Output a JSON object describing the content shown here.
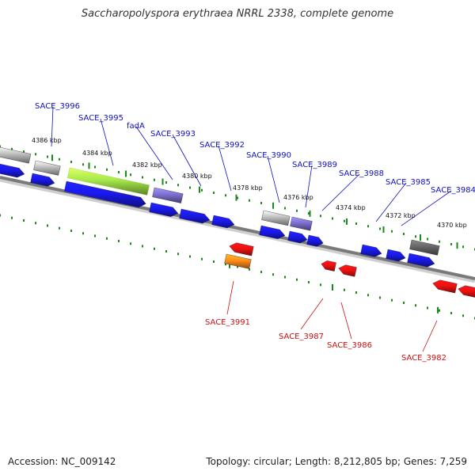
{
  "title": "Saccharopolyspora erythraea NRRL 2338, complete genome",
  "footer": {
    "accession": "Accession: NC_009142",
    "summary": "Topology: circular; Length: 8,212,805 bp; Genes: 7,259"
  },
  "colors": {
    "blue_gene": "#1a1aee",
    "red_gene": "#ee1111",
    "lime_gene": "#a6e84a",
    "purple_gene": "#7b6fd0",
    "gray_gene": "#bdbdbd",
    "darkgray_gene": "#666666",
    "orange_gene": "#ff8c1a",
    "tick_green": "#1a8a1a",
    "plus_label": "#1010c0",
    "minus_label": "#cc1010",
    "backbone": "#7a7a7a"
  },
  "scale_labels": [
    "4386 kbp",
    "4384 kbp",
    "4382 kbp",
    "4380 kbp",
    "4378 kbp",
    "4376 kbp",
    "4374 kbp",
    "4372 kbp",
    "4370 kbp"
  ],
  "plus_strand_labels": [
    "SACE_3996",
    "SACE_3995",
    "fadA",
    "SACE_3993",
    "SACE_3992",
    "SACE_3990",
    "SACE_3989",
    "SACE_3988",
    "SACE_3985",
    "SACE_3984"
  ],
  "minus_strand_labels": [
    "SACE_3991",
    "SACE_3987",
    "SACE_3986",
    "SACE_3982"
  ]
}
